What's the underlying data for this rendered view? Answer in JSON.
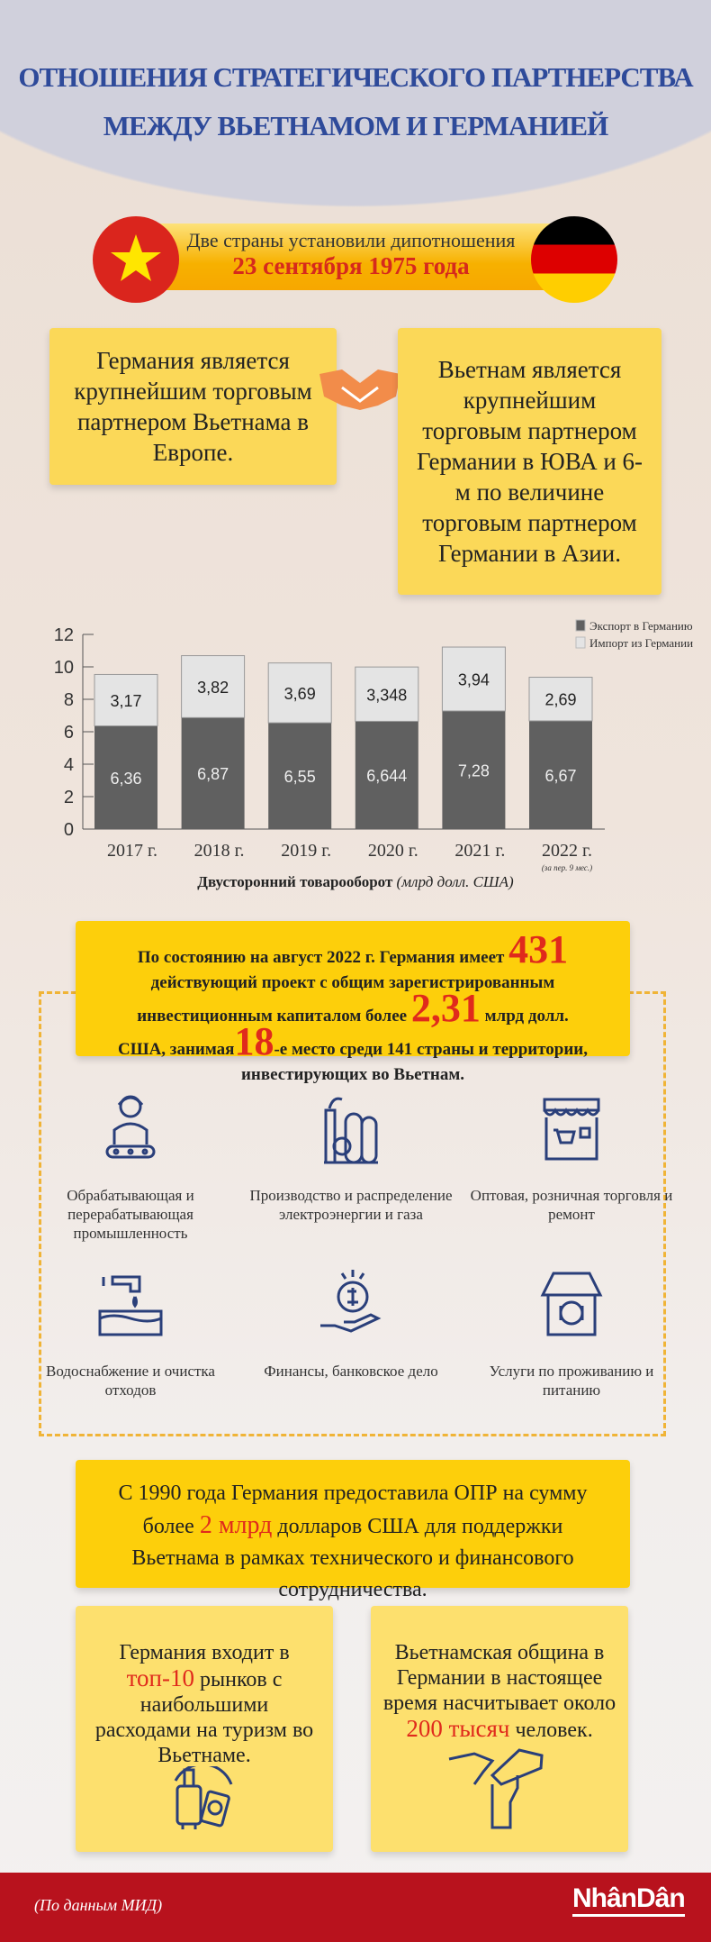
{
  "title": {
    "line1": "ОТНОШЕНИЯ СТРАТЕГИЧЕСКОГО ПАРТНЕРСТВА",
    "line2": "МЕЖДУ ВЬЕТНАМОМ И ГЕРМАНИЕЙ"
  },
  "banner": {
    "line1": "Две страны установили дипотношения",
    "line2": "23 сентября 1975 года"
  },
  "left_box": "Германия является крупнейшим торговым партнером Вьетнама в Европе.",
  "right_box": "Вьетнам является крупнейшим торговым партнером Германии в ЮВА и 6-м по величине торговым партнером Германии в Азии.",
  "colors": {
    "accent_red": "#e02a1c",
    "yellow": "#fbd858",
    "navy": "#2a3f7a",
    "footer": "#b8121d"
  },
  "chart_data": {
    "type": "bar",
    "stacked": true,
    "categories": [
      "2017 г.",
      "2018 г.",
      "2019 г.",
      "2020 г.",
      "2021 г.",
      "2022 г."
    ],
    "category_note": "(за пер. 9 мес.)",
    "series": [
      {
        "name": "Экспорт в Германию",
        "color": "#606060",
        "values": [
          6.36,
          6.87,
          6.55,
          6.644,
          7.28,
          6.67
        ],
        "labels": [
          "6,36",
          "6,87",
          "6,55",
          "6,644",
          "7,28",
          "6,67"
        ]
      },
      {
        "name": "Импорт из Германии",
        "color": "#e4e4e4",
        "values": [
          3.17,
          3.82,
          3.69,
          3.348,
          3.94,
          2.69
        ],
        "labels": [
          "3,17",
          "3,82",
          "3,69",
          "3,348",
          "3,94",
          "2,69"
        ]
      }
    ],
    "yticks": [
      "0",
      "2",
      "4",
      "6",
      "8",
      "10",
      "12"
    ],
    "ylim": [
      0,
      12
    ],
    "xlabel": "Двусторонний товарооборот",
    "xlabel_unit": "(млрд долл. США)",
    "legend": "top-right"
  },
  "investment": {
    "p1": "По состоянию на август 2022 г. Германия имеет",
    "n1": "431",
    "p2": "действующий проект с общим зарегистрированным инвестиционным капиталом более",
    "n2": "2,31",
    "p3": "млрд долл. США, занимая",
    "n3": "18",
    "p4": "-е место среди 141 страны и территории, инвестирующих во Вьетнам."
  },
  "industries": [
    {
      "icon": "worker-icon",
      "label": "Обрабатывающая и перерабатывающая промышленность"
    },
    {
      "icon": "power-plant-icon",
      "label": "Производство и распределение электроэнергии и газа"
    },
    {
      "icon": "shop-icon",
      "label": "Оптовая, розничная торговля и ремонт"
    },
    {
      "icon": "water-tap-icon",
      "label": "Водоснабжение и очистка отходов"
    },
    {
      "icon": "money-hand-icon",
      "label": "Финансы, банковское дело"
    },
    {
      "icon": "restaurant-icon",
      "label": "Услуги по проживанию и питанию"
    }
  ],
  "oda": {
    "p1": "С 1990 года Германия предоставила ОПР на сумму более",
    "n": "2 млрд",
    "p2": "долларов США для поддержки Вьетнама в рамках технического и финансового сотрудничества."
  },
  "tourism": {
    "p1": "Германия входит в",
    "n": "топ-10",
    "p2": "рынков с наибольшими расходами на туризм во Вьетнаме."
  },
  "community": {
    "p1": "Вьетнамская община в Германии в настоящее время насчитывает около",
    "n": "200 тысяч",
    "p2": "человек."
  },
  "footer": {
    "source": "(По данным МИД)",
    "logo": "NhânDân"
  }
}
